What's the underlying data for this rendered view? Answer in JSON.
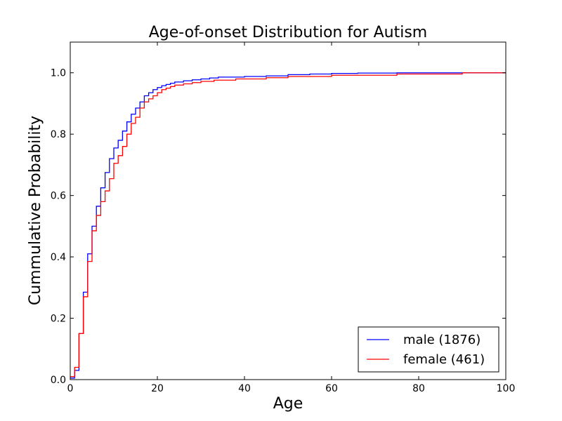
{
  "chart_data": {
    "type": "line",
    "step": true,
    "title": "Age-of-onset Distribution for Autism",
    "xlabel": "Age",
    "ylabel": "Cummulative Probability",
    "xlim": [
      0,
      100
    ],
    "ylim": [
      0,
      1.1
    ],
    "xticks": [
      0,
      20,
      40,
      60,
      80,
      100
    ],
    "xtick_labels": [
      "0",
      "20",
      "40",
      "60",
      "80",
      "100"
    ],
    "yticks": [
      0,
      0.2,
      0.4,
      0.6,
      0.8,
      1.0
    ],
    "ytick_labels": [
      "0.0",
      "0.2",
      "0.4",
      "0.6",
      "0.8",
      "1.0"
    ],
    "grid": false,
    "legend": {
      "position": "lower-right"
    },
    "series": [
      {
        "name": "male (1876)",
        "color": "#0000ff",
        "x": [
          0,
          1,
          2,
          3,
          4,
          5,
          6,
          7,
          8,
          9,
          10,
          11,
          12,
          13,
          14,
          15,
          16,
          17,
          18,
          19,
          20,
          21,
          22,
          23,
          24,
          26,
          28,
          30,
          32,
          34,
          40,
          45,
          50,
          55,
          60,
          66,
          75,
          85,
          100
        ],
        "y": [
          0.005,
          0.03,
          0.15,
          0.285,
          0.41,
          0.5,
          0.565,
          0.625,
          0.675,
          0.72,
          0.755,
          0.78,
          0.81,
          0.84,
          0.865,
          0.885,
          0.905,
          0.925,
          0.935,
          0.945,
          0.952,
          0.958,
          0.962,
          0.966,
          0.97,
          0.974,
          0.977,
          0.98,
          0.983,
          0.986,
          0.988,
          0.99,
          0.994,
          0.996,
          0.998,
          0.999,
          1.0,
          1.0,
          1.0
        ]
      },
      {
        "name": "female (461)",
        "color": "#ff0000",
        "x": [
          0,
          1,
          2,
          3,
          4,
          5,
          6,
          7,
          8,
          9,
          10,
          11,
          12,
          13,
          14,
          15,
          16,
          17,
          18,
          19,
          20,
          21,
          22,
          23,
          24,
          26,
          28,
          30,
          33,
          38,
          45,
          50,
          60,
          75,
          90,
          100
        ],
        "y": [
          0.01,
          0.04,
          0.15,
          0.27,
          0.385,
          0.485,
          0.535,
          0.58,
          0.615,
          0.655,
          0.705,
          0.73,
          0.76,
          0.8,
          0.835,
          0.855,
          0.885,
          0.905,
          0.915,
          0.925,
          0.935,
          0.945,
          0.95,
          0.955,
          0.96,
          0.964,
          0.968,
          0.972,
          0.976,
          0.98,
          0.984,
          0.988,
          0.992,
          0.996,
          1.0,
          1.0
        ]
      }
    ]
  }
}
